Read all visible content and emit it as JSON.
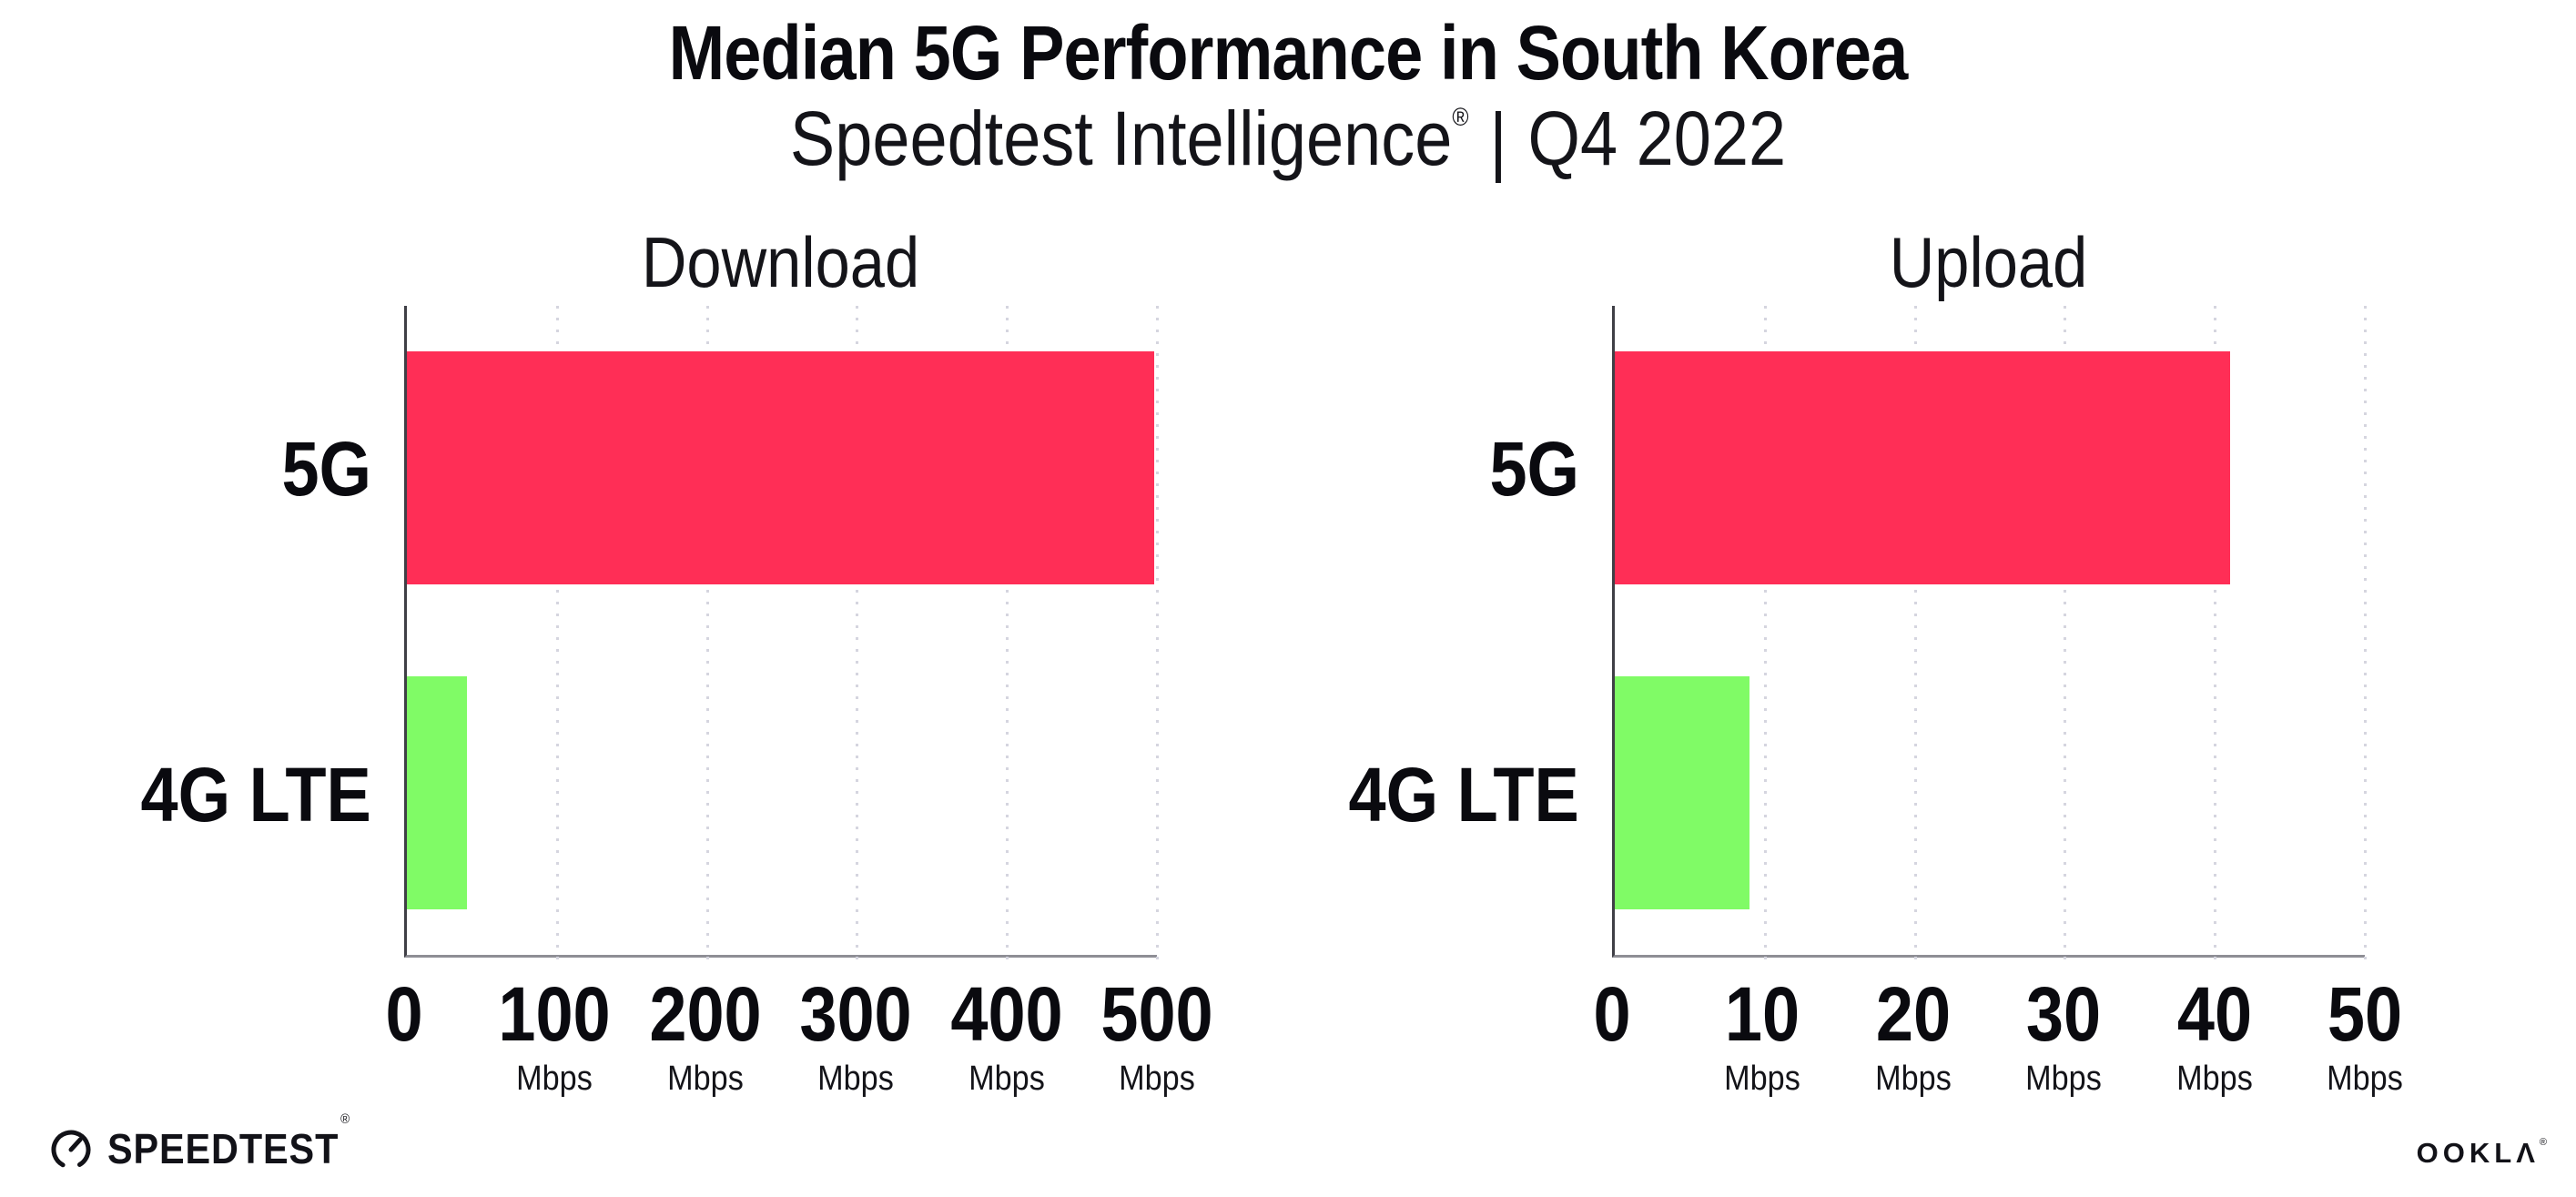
{
  "header": {
    "title": "Median 5G Performance in South Korea",
    "subtitle": {
      "brand": "Speedtest Intelligence",
      "registered_mark": "®",
      "separator": "|",
      "period": "Q4 2022"
    }
  },
  "chart_data": [
    {
      "type": "bar",
      "orientation": "horizontal",
      "title": "Download",
      "categories": [
        "5G",
        "4G LTE"
      ],
      "values": [
        498,
        40
      ],
      "unit": "Mbps",
      "xlim": [
        0,
        500
      ],
      "xticks": [
        0,
        100,
        200,
        300,
        400,
        500
      ],
      "bar_colors": [
        "#ff2e56",
        "#80fb66"
      ],
      "grid": "vertical-dotted",
      "legend": "none"
    },
    {
      "type": "bar",
      "orientation": "horizontal",
      "title": "Upload",
      "categories": [
        "5G",
        "4G LTE"
      ],
      "values": [
        41,
        9
      ],
      "unit": "Mbps",
      "xlim": [
        0,
        50
      ],
      "xticks": [
        0,
        10,
        20,
        30,
        40,
        50
      ],
      "bar_colors": [
        "#ff2e56",
        "#80fb66"
      ],
      "grid": "vertical-dotted",
      "legend": "none"
    }
  ],
  "footer": {
    "speedtest_logo_text": "SPEEDTEST",
    "speedtest_reg_mark": "®",
    "ookla_logo_text": "OOKLΛ",
    "ookla_reg_mark": "®"
  },
  "colors": {
    "bar_5g": "#ff2e56",
    "bar_4g_lte": "#80fb66",
    "axis_line": "#3f3f46",
    "baseline": "#8e8e95",
    "grid_dot": "#d5d5df",
    "text": "#0a0a0f",
    "background": "#ffffff"
  }
}
